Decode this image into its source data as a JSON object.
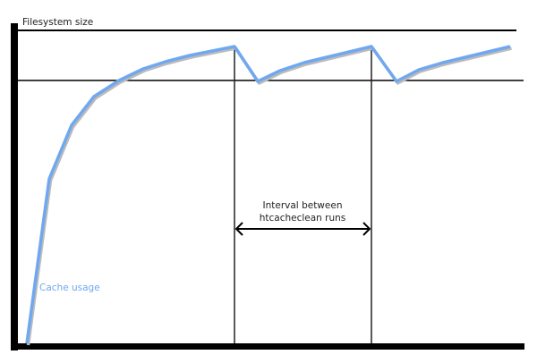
{
  "y_axis_label": "Filesystem size",
  "curve_label": "Cache usage",
  "interval_label_lines": [
    "Interval between",
    "htcacheclean runs"
  ],
  "colors": {
    "curve": "#6fa8f0",
    "curve_shadow": "#bbbbbb",
    "axes": "#000000",
    "label_blue": "#6fa8f0"
  }
}
